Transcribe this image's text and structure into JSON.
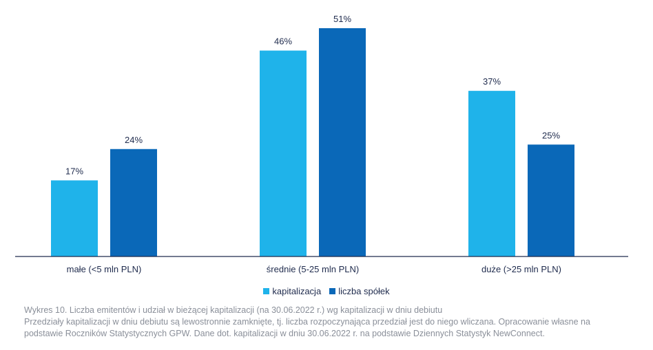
{
  "chart_data": {
    "type": "bar",
    "categories": [
      "małe (<5 mln PLN)",
      "średnie (5-25 mln PLN)",
      "duże (>25 mln PLN)"
    ],
    "series": [
      {
        "name": "kapitalizacja",
        "values": [
          17,
          46,
          37
        ],
        "color": "#1fb3ea"
      },
      {
        "name": "liczba spółek",
        "values": [
          24,
          51,
          25
        ],
        "color": "#0a68b8"
      }
    ],
    "value_suffix": "%",
    "ylim": [
      0,
      51
    ],
    "grid": false,
    "legend_position": "bottom"
  },
  "caption": {
    "line1": "Wykres 10. Liczba emitentów i udział w bieżącej kapitalizacji (na 30.06.2022 r.) wg kapitalizacji w dniu debiutu",
    "line2": "Przedziały kapitalizacji w dniu debiutu są lewostronnie zamknięte, tj. liczba rozpoczynająca przedział jest do niego wliczana. Opracowanie własne na",
    "line3": "podstawie Roczników Statystycznych GPW. Dane dot. kapitalizacji w dniu 30.06.2022 r. na podstawie Dziennych Statystyk NewConnect."
  },
  "colors": {
    "axis": "#1f2b4d"
  }
}
